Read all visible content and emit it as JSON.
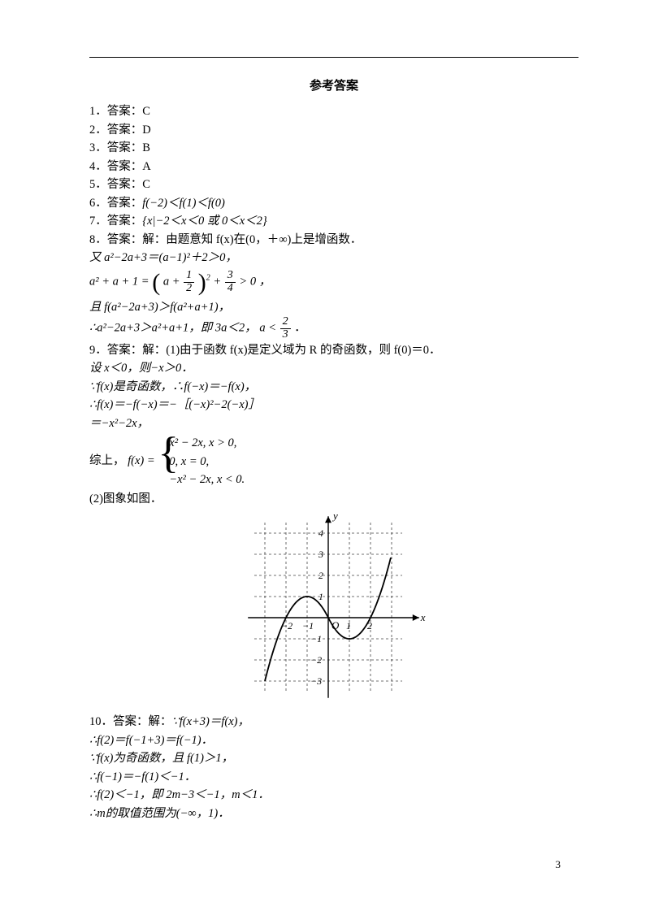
{
  "title": "参考答案",
  "answers": {
    "a1_num": "1．",
    "a1_lbl": "答案：",
    "a1_val": "C",
    "a2_num": "2．",
    "a2_lbl": "答案：",
    "a2_val": "D",
    "a3_num": "3．",
    "a3_lbl": "答案：",
    "a3_val": "B",
    "a4_num": "4．",
    "a4_lbl": "答案：",
    "a4_val": "A",
    "a5_num": "5．",
    "a5_lbl": "答案：",
    "a5_val": "C",
    "a6_num": "6．",
    "a6_lbl": "答案：",
    "a6_val": "f(−2)＜f(1)＜f(0)",
    "a7_num": "7．",
    "a7_lbl": "答案：",
    "a7_val": "{x|−2＜x＜0 或 0＜x＜2}",
    "a8_num": "8．",
    "a8_lbl": "答案：解：",
    "a8_txt": "由题意知 f(x)在(0，＋∞)上是增函数．"
  },
  "eq8": {
    "l1": "又 a²−2a+3＝(a−1)²＋2＞0，",
    "eq_pre": "a² + a + 1 = ",
    "eq_inparen": "a + ",
    "eq_halfnum": "1",
    "eq_halfden": "2",
    "eq_sup": "2",
    "eq_plus": " + ",
    "eq_34num": "3",
    "eq_34den": "4",
    "eq_gt": " > 0 ，",
    "l3": "且 f(a²−2a+3)＞f(a²+a+1)，",
    "l4_pre": "∴a²−2a+3＞a²+a+1，即 3a＜2，",
    "l4_a": "a < ",
    "l4_fracnum": "2",
    "l4_fracden": "3",
    "l4_tail": "．"
  },
  "q9": {
    "head_num": "9．",
    "head_lbl": "答案：解：",
    "p1": "(1)由于函数 f(x)是定义域为 R 的奇函数，则 f(0)＝0．",
    "p2": "设 x＜0，则−x＞0．",
    "p3": "∵f(x)是奇函数，∴f(−x)＝−f(x)，",
    "p4": "∴f(x)＝−f(−x)＝−［(−x)²−2(−x)］",
    "p5": "＝−x²−2x，",
    "piece_pre": "综上，",
    "piece_fx": "f(x) = ",
    "pr1": "x² − 2x, x > 0,",
    "pr2": "0, x = 0,",
    "pr3": "−x² − 2x, x < 0.",
    "p6": "(2)图象如图．"
  },
  "graph": {
    "type": "function-plot",
    "axis_color": "#000",
    "grid_color": "#444",
    "grid_dash": "3,3",
    "bg": "#fff",
    "curve_color": "#000",
    "curve_width": 1.8,
    "x_ticks": [
      -2,
      -1,
      1,
      2
    ],
    "y_ticks": [
      -3,
      -2,
      -1,
      1,
      2,
      3,
      4
    ],
    "x_label": "x",
    "y_label": "y",
    "origin": "O",
    "x_tick_labels": {
      "-2": "−2",
      "-1": "−1",
      "1": "1",
      "2": "2"
    },
    "y_tick_labels": {
      "-3": "−3",
      "-2": "−2",
      "-1": "−1",
      "1": "1",
      "2": "2",
      "3": "3",
      "4": "4"
    },
    "unit": 26
  },
  "q10": {
    "head_num": "10．",
    "head_lbl": "答案：解：",
    "l0": "∵f(x+3)＝f(x)，",
    "l1": "∴f(2)＝f(−1+3)＝f(−1)．",
    "l2": "∵f(x)为奇函数，且 f(1)＞1，",
    "l3": "∴f(−1)＝−f(1)＜−1．",
    "l4": "∴f(2)＜−1，即 2m−3＜−1，m＜1．",
    "l5": "∴m的取值范围为(−∞，1)．"
  },
  "pagenum": "3"
}
